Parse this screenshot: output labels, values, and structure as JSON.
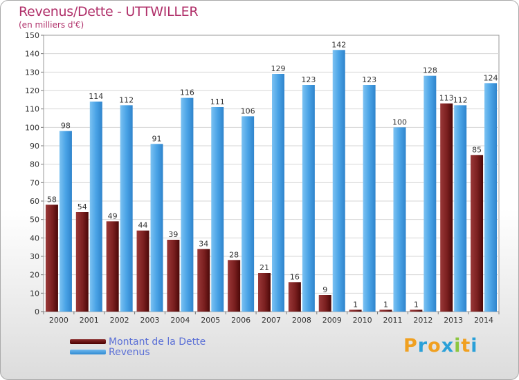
{
  "header": {
    "title": "Revenus/Dette - UTTWILLER",
    "subtitle": "(en milliers d'€)"
  },
  "colors": {
    "title": "#b0306a",
    "debt": "#7a1f1f",
    "revenue": "#4aa3e6",
    "legend_text": "#5a6fd6"
  },
  "logo": {
    "letters": [
      "P",
      "r",
      "o",
      "x",
      "i",
      "t",
      "i"
    ],
    "colors": [
      "#f0a020",
      "#2aa0d8",
      "#f0a020",
      "#2aa0d8",
      "#8cc63f",
      "#f0a020",
      "#2aa0d8"
    ]
  },
  "chart_data": {
    "type": "bar",
    "title": "Revenus/Dette - UTTWILLER",
    "subtitle": "(en milliers d'€)",
    "categories": [
      "2000",
      "2001",
      "2002",
      "2003",
      "2004",
      "2005",
      "2006",
      "2007",
      "2008",
      "2009",
      "2010",
      "2011",
      "2012",
      "2013",
      "2014"
    ],
    "series": [
      {
        "name": "Montant de la Dette",
        "values": [
          58,
          54,
          49,
          44,
          39,
          34,
          28,
          21,
          16,
          9,
          1,
          1,
          1,
          113,
          85
        ]
      },
      {
        "name": "Revenus",
        "values": [
          98,
          114,
          112,
          91,
          116,
          111,
          106,
          129,
          123,
          142,
          123,
          100,
          128,
          112,
          124
        ]
      }
    ],
    "ylim": [
      0,
      150
    ],
    "yticks": [
      0,
      10,
      20,
      30,
      40,
      50,
      60,
      70,
      80,
      90,
      100,
      110,
      120,
      130,
      140,
      150
    ],
    "grid": true,
    "legend_position": "bottom-left"
  }
}
